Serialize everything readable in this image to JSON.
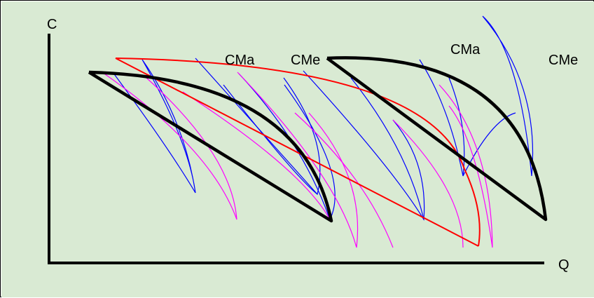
{
  "figure": {
    "background": "#d9ead3",
    "axes": {
      "y_label": "C",
      "x_label": "Q"
    },
    "labels": {
      "short_run_marginal": "CMa",
      "short_run_average": "CMe",
      "long_run_marginal": "CMa",
      "long_run_average": "CMe"
    },
    "colors": {
      "axis": "#000000",
      "short_run_average_curve": "#000000",
      "long_run_curve": "#ff0000",
      "marginal_curves": "#0000ff",
      "average_curves": "#ff00ff"
    }
  }
}
